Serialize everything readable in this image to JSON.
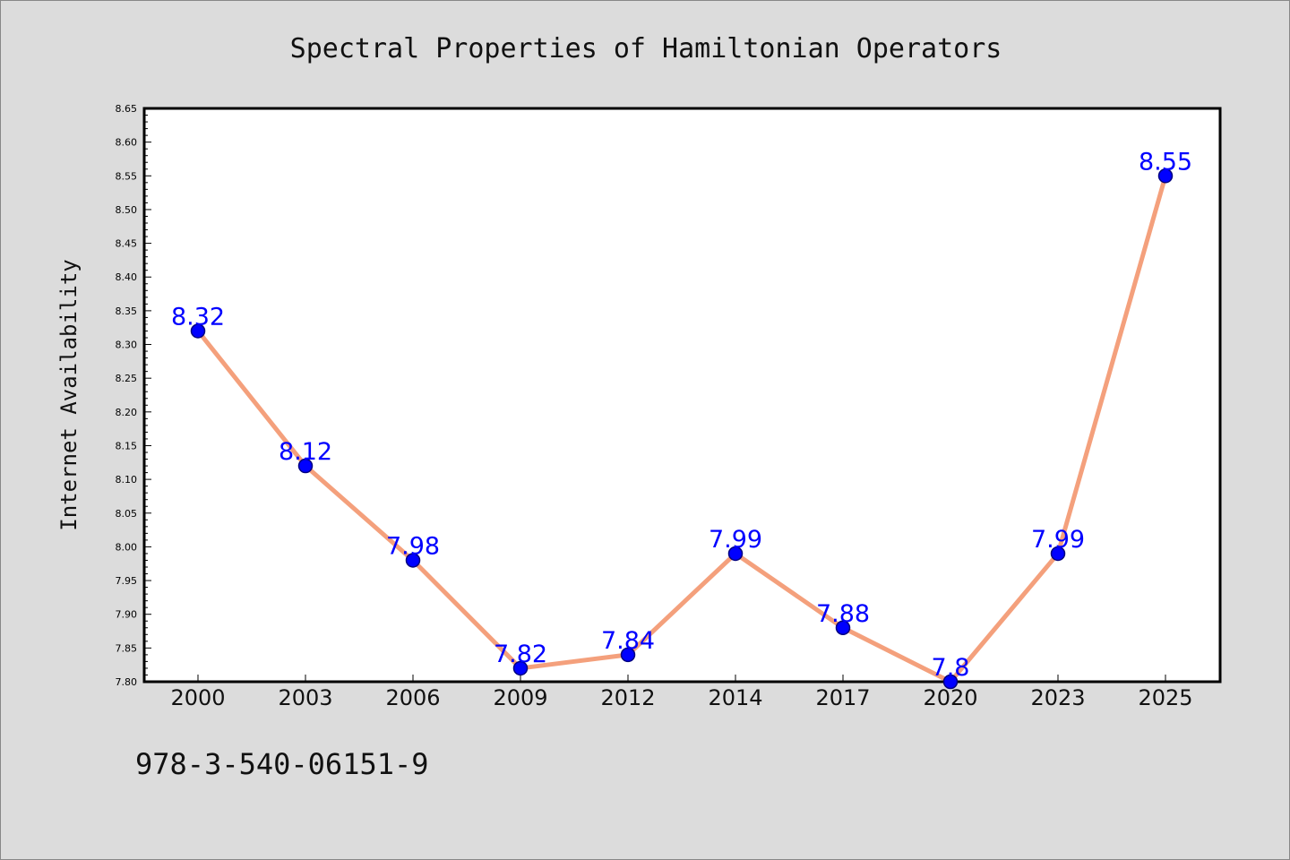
{
  "chart_data": {
    "type": "line",
    "title": "Spectral Properties of Hamiltonian Operators",
    "xlabel": "",
    "ylabel": "Internet Availability",
    "categories": [
      "2000",
      "2003",
      "2006",
      "2009",
      "2012",
      "2014",
      "2017",
      "2020",
      "2023",
      "2025"
    ],
    "series": [
      {
        "values": [
          8.32,
          8.12,
          7.98,
          7.82,
          7.84,
          7.99,
          7.88,
          7.8,
          7.99,
          8.55
        ],
        "data_labels": [
          "8.32",
          "8.12",
          "7.98",
          "7.82",
          "7.84",
          "7.99",
          "7.88",
          "7.8",
          "7.99",
          "8.55"
        ]
      }
    ],
    "ylim": [
      7.8,
      8.65
    ],
    "y_ticks": [
      "7.80",
      "7.85",
      "7.90",
      "7.95",
      "8.00",
      "8.05",
      "8.10",
      "8.15",
      "8.20",
      "8.25",
      "8.30",
      "8.35",
      "8.40",
      "8.45",
      "8.50",
      "8.55",
      "8.60",
      "8.65"
    ],
    "grid": false,
    "legend": "none",
    "colors": {
      "line": "#f4a07c",
      "marker_fill": "#0000ff",
      "marker_edge": "#000080",
      "data_label": "#0000ff",
      "background": "#dcdcdc",
      "plot_background": "#ffffff"
    }
  },
  "footnote": "978-3-540-06151-9"
}
